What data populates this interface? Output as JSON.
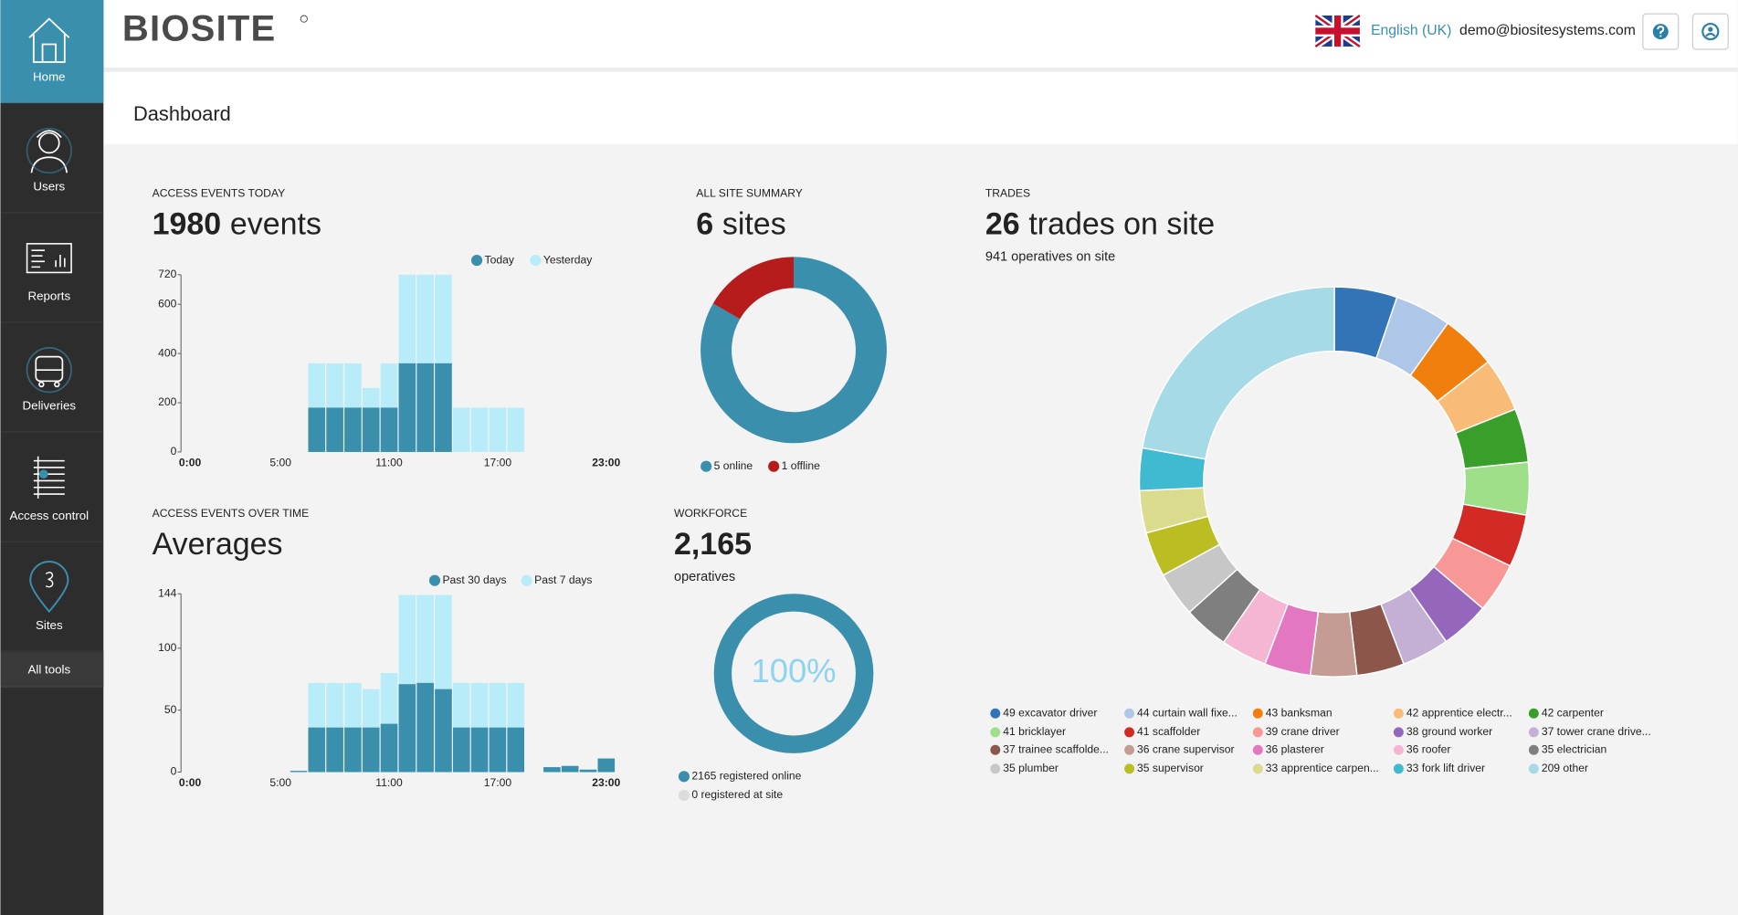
{
  "sidebar": {
    "items": [
      "Home",
      "Users",
      "Reports",
      "Deliveries",
      "Access control",
      "Sites"
    ],
    "all_tools": "All tools"
  },
  "header": {
    "logo": "BIOSITE",
    "language": "English (UK)",
    "email": "demo@biositesystems.com"
  },
  "page_title": "Dashboard",
  "chart_data": [
    {
      "type": "bar",
      "title": "ACCESS EVENTS TODAY",
      "headline": 1980,
      "headline_unit": "events",
      "categories": [
        "0:00",
        null,
        null,
        null,
        null,
        "5:00",
        null,
        null,
        null,
        null,
        null,
        "11:00",
        null,
        null,
        null,
        null,
        null,
        "17:00",
        null,
        null,
        null,
        null,
        null,
        "23:00"
      ],
      "series": [
        {
          "name": "Today",
          "color": "#3a8fad",
          "values": [
            0,
            0,
            0,
            0,
            0,
            0,
            0,
            180,
            180,
            180,
            180,
            180,
            360,
            360,
            360,
            0,
            0,
            0,
            0,
            0,
            0,
            0,
            0,
            0
          ]
        },
        {
          "name": "Yesterday",
          "color": "#b9ecf9",
          "values": [
            0,
            0,
            0,
            0,
            0,
            0,
            0,
            360,
            360,
            360,
            260,
            360,
            720,
            720,
            720,
            180,
            180,
            180,
            180,
            0,
            0,
            0,
            0,
            0
          ]
        }
      ],
      "ylim": [
        0,
        720
      ],
      "yticks": [
        0,
        200,
        400,
        600,
        720
      ]
    },
    {
      "type": "bar",
      "title": "ACCESS EVENTS OVER TIME",
      "headline": "Averages",
      "categories": [
        "0:00",
        null,
        null,
        null,
        null,
        "5:00",
        null,
        null,
        null,
        null,
        null,
        "11:00",
        null,
        null,
        null,
        null,
        null,
        "17:00",
        null,
        null,
        null,
        null,
        null,
        "23:00"
      ],
      "series": [
        {
          "name": "Past 30 days",
          "color": "#3a8fad",
          "values": [
            0,
            0,
            0,
            0,
            0,
            0,
            1,
            36,
            36,
            36,
            36,
            39,
            71,
            72,
            67,
            36,
            36,
            36,
            36,
            0,
            4,
            5,
            2,
            11
          ]
        },
        {
          "name": "Past 7 days",
          "color": "#b9ecf9",
          "values": [
            0,
            0,
            0,
            0,
            0,
            0,
            0,
            72,
            72,
            72,
            67,
            80,
            143,
            143,
            143,
            72,
            72,
            72,
            72,
            0,
            3,
            4,
            2,
            9
          ]
        }
      ],
      "ylim": [
        0,
        144
      ],
      "yticks": [
        0,
        50,
        100,
        144
      ]
    },
    {
      "type": "donut",
      "title": "ALL SITE SUMMARY",
      "headline": 6,
      "headline_unit": "sites",
      "categories": [
        "5 online",
        "1 offline"
      ],
      "values": [
        5,
        1
      ],
      "colors": [
        "#3a8fad",
        "#b71c1c"
      ]
    },
    {
      "type": "donut",
      "title": "WORKFORCE",
      "headline": "2,165",
      "subtitle": "operatives",
      "categories": [
        "2165 registered online",
        "0 registered at site"
      ],
      "values": [
        2165,
        0
      ],
      "colors": [
        "#3a8fad",
        "#dcdcdc"
      ],
      "center_label": "100%"
    },
    {
      "type": "donut",
      "title": "TRADES",
      "headline": 26,
      "headline_unit": "trades on site",
      "subtitle": "941 operatives on site",
      "categories": [
        "49 excavator driver",
        "44 curtain wall fixe...",
        "43 banksman",
        "42 apprentice electr...",
        "42 carpenter",
        "41 bricklayer",
        "41 scaffolder",
        "39 crane driver",
        "38 ground worker",
        "37 tower crane drive...",
        "37 trainee scaffolde...",
        "36 crane supervisor",
        "36 plasterer",
        "36 roofer",
        "35 electrician",
        "35 plumber",
        "35 supervisor",
        "33 apprentice carpen...",
        "33 fork lift driver",
        "209 other"
      ],
      "values": [
        49,
        44,
        43,
        42,
        42,
        41,
        41,
        39,
        38,
        37,
        37,
        36,
        36,
        36,
        35,
        35,
        35,
        33,
        33,
        209
      ],
      "colors": [
        "#3274b5",
        "#aec7e8",
        "#f07f0e",
        "#f8bb78",
        "#3a9e2a",
        "#9fdf8a",
        "#d42a25",
        "#f89896",
        "#9467bd",
        "#c5b0d5",
        "#8c564b",
        "#c49c94",
        "#e377c2",
        "#f4b6d2",
        "#7f7f7f",
        "#c7c7c7",
        "#bcbd22",
        "#dbdb8d",
        "#3fbad0",
        "#a5dae6"
      ]
    }
  ]
}
